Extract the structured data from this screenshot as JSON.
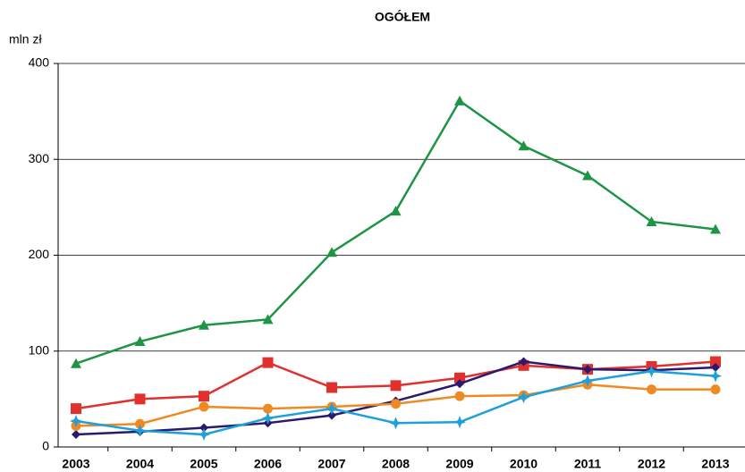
{
  "chart_data": {
    "type": "line",
    "title": "OGÓŁEM",
    "y_label": "mln zł",
    "categories": [
      "2003",
      "2004",
      "2005",
      "2006",
      "2007",
      "2008",
      "2009",
      "2010",
      "2011",
      "2012",
      "2013"
    ],
    "series": [
      {
        "color": "#1e9445",
        "marker": "triangle",
        "values": [
          87,
          110,
          127,
          133,
          203,
          246,
          361,
          314,
          283,
          235,
          227
        ]
      },
      {
        "color": "#e0312f",
        "marker": "square",
        "values": [
          40,
          50,
          53,
          88,
          62,
          64,
          72,
          85,
          81,
          84,
          89
        ]
      },
      {
        "color": "#2a1a6e",
        "marker": "diamond",
        "values": [
          13,
          16,
          20,
          25,
          33,
          48,
          66,
          89,
          81,
          80,
          83
        ]
      },
      {
        "color": "#ef8a23",
        "marker": "circle",
        "values": [
          22,
          24,
          42,
          40,
          42,
          45,
          53,
          54,
          65,
          60,
          60
        ]
      },
      {
        "color": "#1ea0dc",
        "marker": "star",
        "values": [
          27,
          17,
          13,
          30,
          40,
          25,
          26,
          52,
          69,
          79,
          74
        ]
      }
    ],
    "ylim": [
      0,
      400
    ],
    "yticks": [
      0,
      100,
      200,
      300,
      400
    ],
    "grid": true
  }
}
